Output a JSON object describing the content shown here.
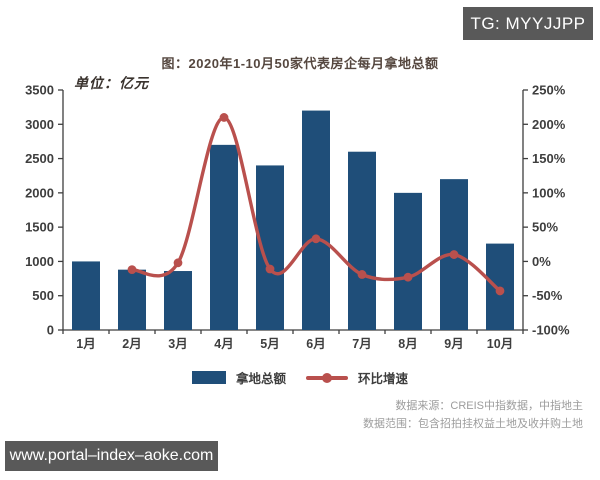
{
  "badge": {
    "text": "TG: MYYJJPP"
  },
  "title": "图：2020年1-10月50家代表房企每月拿地总额",
  "chart_data": {
    "type": "bar+line combo",
    "title": "图：2020年1-10月50家代表房企每月拿地总额",
    "unit_label": "单位：亿元",
    "categories": [
      "1月",
      "2月",
      "3月",
      "4月",
      "5月",
      "6月",
      "7月",
      "8月",
      "9月",
      "10月"
    ],
    "series": [
      {
        "name": "拿地总额",
        "type": "bar",
        "axis": "left",
        "color": "#1f4e79",
        "values": [
          1000,
          880,
          860,
          2700,
          2400,
          3200,
          2600,
          2000,
          2200,
          1260
        ]
      },
      {
        "name": "环比增速",
        "type": "line",
        "axis": "right",
        "color": "#b9504d",
        "values": [
          null,
          -12,
          -2,
          210,
          -11,
          33,
          -19,
          -23,
          10,
          -43
        ]
      }
    ],
    "left_axis": {
      "min": 0,
      "max": 3500,
      "tick_values": [
        0,
        500,
        1000,
        1500,
        2000,
        2500,
        3000,
        3500
      ],
      "tick_labels": [
        "0",
        "500",
        "1000",
        "1500",
        "2000",
        "2500",
        "3000",
        "3500"
      ]
    },
    "right_axis": {
      "min": -100,
      "max": 250,
      "tick_values": [
        -100,
        -50,
        0,
        50,
        100,
        150,
        200,
        250
      ],
      "tick_labels": [
        "-100%",
        "-50%",
        "0%",
        "50%",
        "100%",
        "150%",
        "200%",
        "250%"
      ]
    },
    "grid": false,
    "legend_position": "bottom"
  },
  "legend": {
    "bar_label": "拿地总额",
    "line_label": "环比增速"
  },
  "source": {
    "line1": "数据来源：CREIS中指数据，中指地主",
    "line2": "数据范围：包含招拍挂权益土地及收并购土地"
  },
  "watermark": {
    "url": "www.portal–index–aoke.com"
  },
  "colors": {
    "bar": "#1f4e79",
    "line": "#b9504d",
    "badge_bg": "#595959",
    "axis_text": "#3e3e3e",
    "title_text": "#55473f",
    "source_text": "#9c9c9c"
  }
}
